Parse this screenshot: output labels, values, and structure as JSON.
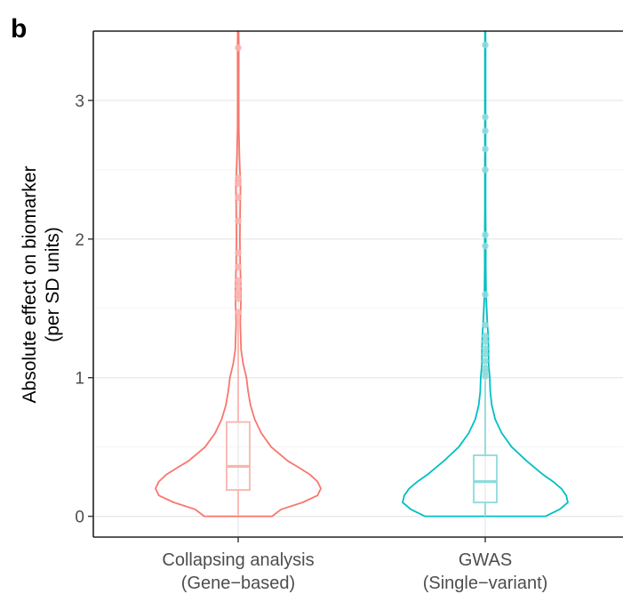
{
  "panel_label": "b",
  "chart_data": {
    "type": "violin",
    "title": "",
    "xlabel": "",
    "ylabel_lines": [
      "Absolute effect on biomarker",
      "(per SD units)"
    ],
    "ylim": [
      -0.15,
      3.5
    ],
    "yticks": [
      0,
      1,
      2,
      3
    ],
    "grid": true,
    "legend": "none",
    "categories": [
      {
        "line1": "Collapsing analysis",
        "line2": "(Gene−based)"
      },
      {
        "line1": "GWAS",
        "line2": "(Single−variant)"
      }
    ],
    "series": [
      {
        "color": "#F8766D",
        "light_color": "#FBB4AE",
        "box": {
          "q1": 0.19,
          "median": 0.36,
          "q3": 0.68,
          "whisker_low": 0.01,
          "whisker_high": 1.45
        },
        "density": [
          [
            0.0,
            0.41
          ],
          [
            0.05,
            0.52
          ],
          [
            0.1,
            0.78
          ],
          [
            0.15,
            0.96
          ],
          [
            0.2,
            1.0
          ],
          [
            0.25,
            0.96
          ],
          [
            0.3,
            0.87
          ],
          [
            0.35,
            0.74
          ],
          [
            0.4,
            0.6
          ],
          [
            0.5,
            0.4
          ],
          [
            0.6,
            0.28
          ],
          [
            0.7,
            0.2
          ],
          [
            0.8,
            0.15
          ],
          [
            0.9,
            0.12
          ],
          [
            1.0,
            0.1
          ],
          [
            1.1,
            0.06
          ],
          [
            1.2,
            0.035
          ],
          [
            1.3,
            0.03
          ],
          [
            1.4,
            0.025
          ],
          [
            1.5,
            0.03
          ],
          [
            1.6,
            0.034
          ],
          [
            1.7,
            0.03
          ],
          [
            1.8,
            0.025
          ],
          [
            2.0,
            0.02
          ],
          [
            2.2,
            0.024
          ],
          [
            2.4,
            0.028
          ],
          [
            2.5,
            0.02
          ],
          [
            2.6,
            0.015
          ],
          [
            2.8,
            0.008
          ],
          [
            3.0,
            0.006
          ],
          [
            3.2,
            0.006
          ],
          [
            3.4,
            0.007
          ],
          [
            3.5,
            0.005
          ]
        ],
        "outliers": [
          1.47,
          1.57,
          1.6,
          1.62,
          1.66,
          1.7,
          1.8,
          1.9,
          2.13,
          2.3,
          2.4,
          2.44,
          3.38
        ]
      },
      {
        "color": "#00BFC4",
        "light_color": "#8EDADC",
        "box": {
          "q1": 0.1,
          "median": 0.25,
          "q3": 0.44,
          "whisker_low": 0.0,
          "whisker_high": 0.98
        },
        "density": [
          [
            0.0,
            0.73
          ],
          [
            0.05,
            0.9
          ],
          [
            0.1,
            1.0
          ],
          [
            0.15,
            0.98
          ],
          [
            0.2,
            0.92
          ],
          [
            0.25,
            0.82
          ],
          [
            0.3,
            0.7
          ],
          [
            0.4,
            0.5
          ],
          [
            0.5,
            0.32
          ],
          [
            0.6,
            0.2
          ],
          [
            0.7,
            0.12
          ],
          [
            0.8,
            0.08
          ],
          [
            0.9,
            0.06
          ],
          [
            1.0,
            0.055
          ],
          [
            1.1,
            0.04
          ],
          [
            1.2,
            0.04
          ],
          [
            1.3,
            0.035
          ],
          [
            1.4,
            0.025
          ],
          [
            1.6,
            0.01
          ],
          [
            1.8,
            0.006
          ],
          [
            2.0,
            0.006
          ],
          [
            2.2,
            0.004
          ],
          [
            2.5,
            0.004
          ],
          [
            2.8,
            0.004
          ],
          [
            3.0,
            0.004
          ],
          [
            3.2,
            0.004
          ],
          [
            3.4,
            0.004
          ],
          [
            3.5,
            0.003
          ]
        ],
        "outliers": [
          1.01,
          1.04,
          1.07,
          1.12,
          1.17,
          1.21,
          1.26,
          1.3,
          1.38,
          1.6,
          1.95,
          2.03,
          2.5,
          2.65,
          2.78,
          2.88,
          3.4
        ]
      }
    ]
  }
}
